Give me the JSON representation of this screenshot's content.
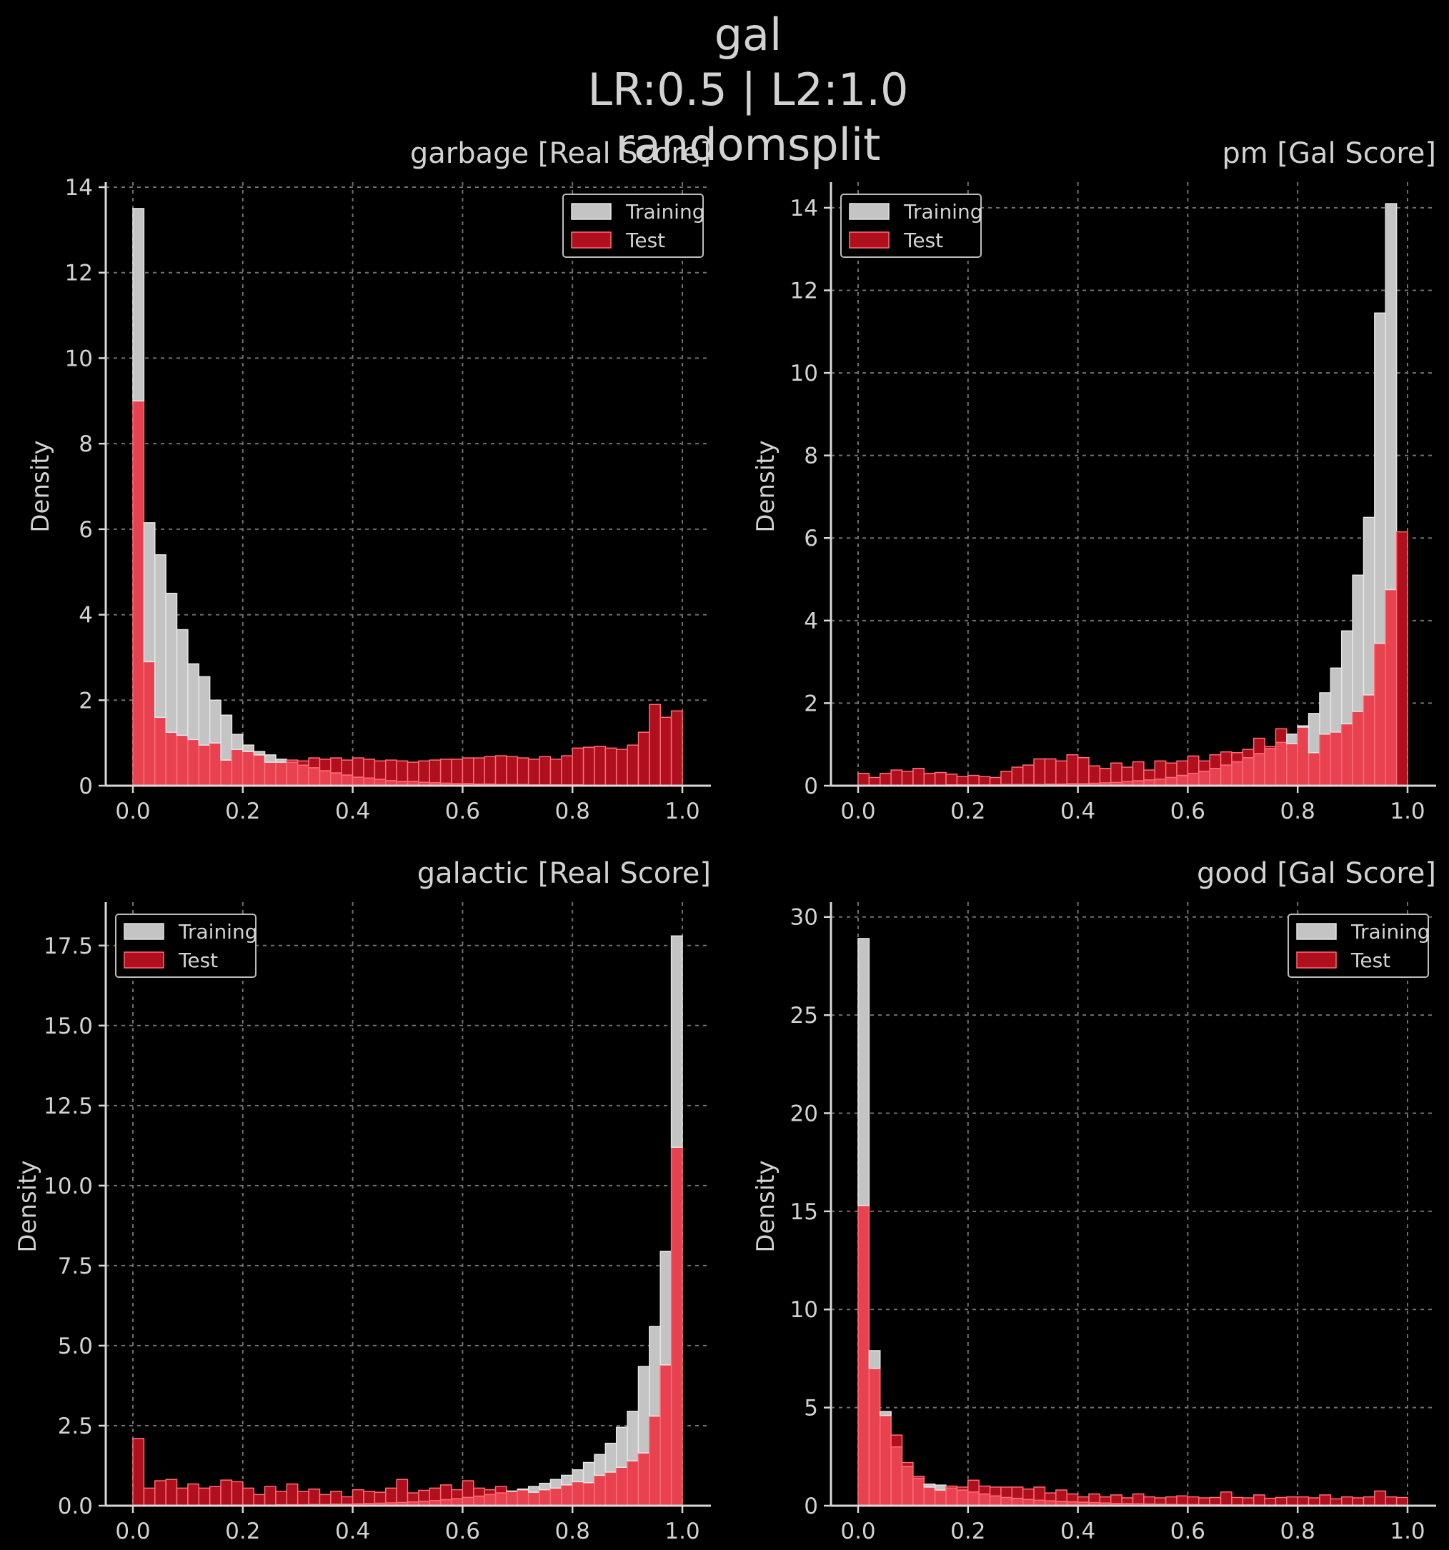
{
  "figure": {
    "title_lines": [
      "gal",
      "LR:0.5 | L2:1.0",
      "randomsplit"
    ],
    "background": "#000000",
    "colors": {
      "training_fill": "#c4c4c4",
      "training_edge": "#e6e6e6",
      "test_fill": "#b0101e",
      "test_edge": "#ff6b75",
      "overlap_fill": "#e8414f",
      "axis": "#d8d8d8",
      "grid": "#707070",
      "text": "#d2d2d2"
    }
  },
  "chart_data": [
    {
      "type": "bar",
      "title": "garbage [Real Score]",
      "xlabel": "",
      "ylabel": "Density",
      "xlim": [
        0.0,
        1.0
      ],
      "ylim": [
        0,
        14
      ],
      "xticks": [
        "0.0",
        "0.2",
        "0.4",
        "0.6",
        "0.8",
        "1.0"
      ],
      "yticks": [
        "0",
        "2",
        "4",
        "6",
        "8",
        "10",
        "12",
        "14"
      ],
      "grid": true,
      "legend_position": "top-right",
      "bins": 50,
      "series": [
        {
          "name": "Training",
          "values": [
            13.5,
            6.15,
            5.4,
            4.5,
            3.65,
            2.85,
            2.55,
            2.0,
            1.65,
            1.2,
            0.95,
            0.8,
            0.72,
            0.62,
            0.55,
            0.48,
            0.42,
            0.35,
            0.3,
            0.25,
            0.2,
            0.18,
            0.15,
            0.12,
            0.1,
            0.1,
            0.08,
            0.07,
            0.06,
            0.05,
            0.05,
            0.04,
            0.04,
            0.03,
            0.03,
            0.03,
            0.02,
            0.02,
            0.02,
            0.02,
            0.02,
            0.01,
            0.01,
            0.01,
            0.01,
            0.01,
            0.01,
            0.01,
            0.01,
            0.01
          ]
        },
        {
          "name": "Test",
          "values": [
            9.0,
            2.9,
            1.6,
            1.25,
            1.18,
            1.08,
            0.95,
            1.0,
            0.6,
            0.85,
            0.8,
            0.72,
            0.55,
            0.55,
            0.6,
            0.58,
            0.65,
            0.62,
            0.65,
            0.6,
            0.65,
            0.62,
            0.58,
            0.6,
            0.58,
            0.55,
            0.58,
            0.6,
            0.62,
            0.62,
            0.65,
            0.65,
            0.68,
            0.7,
            0.68,
            0.65,
            0.62,
            0.68,
            0.62,
            0.7,
            0.88,
            0.9,
            0.92,
            0.88,
            0.85,
            0.95,
            1.25,
            1.9,
            1.6,
            1.75
          ]
        }
      ]
    },
    {
      "type": "bar",
      "title": "pm [Gal Score]",
      "xlabel": "",
      "ylabel": "Density",
      "xlim": [
        0.0,
        1.0
      ],
      "ylim": [
        0,
        14.5
      ],
      "xticks": [
        "0.0",
        "0.2",
        "0.4",
        "0.6",
        "0.8",
        "1.0"
      ],
      "yticks": [
        "0",
        "2",
        "4",
        "6",
        "8",
        "10",
        "12",
        "14"
      ],
      "grid": true,
      "legend_position": "top-left",
      "bins": 50,
      "series": [
        {
          "name": "Training",
          "values": [
            0.01,
            0.01,
            0.01,
            0.01,
            0.01,
            0.01,
            0.01,
            0.01,
            0.02,
            0.02,
            0.02,
            0.02,
            0.02,
            0.03,
            0.03,
            0.03,
            0.03,
            0.04,
            0.04,
            0.05,
            0.05,
            0.06,
            0.07,
            0.08,
            0.1,
            0.12,
            0.14,
            0.16,
            0.2,
            0.25,
            0.3,
            0.35,
            0.42,
            0.5,
            0.58,
            0.68,
            0.78,
            0.9,
            1.05,
            1.25,
            1.45,
            1.75,
            2.25,
            2.85,
            3.75,
            5.1,
            6.5,
            11.45,
            14.1,
            0.0
          ]
        },
        {
          "name": "Test",
          "values": [
            0.3,
            0.2,
            0.3,
            0.38,
            0.35,
            0.42,
            0.3,
            0.32,
            0.28,
            0.22,
            0.25,
            0.22,
            0.2,
            0.35,
            0.45,
            0.5,
            0.65,
            0.65,
            0.6,
            0.75,
            0.68,
            0.48,
            0.42,
            0.55,
            0.45,
            0.58,
            0.38,
            0.6,
            0.55,
            0.6,
            0.72,
            0.6,
            0.75,
            0.82,
            0.8,
            0.88,
            1.15,
            0.95,
            1.38,
            1.02,
            1.42,
            0.8,
            1.25,
            1.3,
            1.5,
            1.8,
            2.2,
            3.45,
            4.75,
            6.15
          ]
        }
      ]
    },
    {
      "type": "bar",
      "title": "galactic [Real Score]",
      "xlabel": "",
      "ylabel": "Density",
      "xlim": [
        0.0,
        1.0
      ],
      "ylim": [
        0,
        18.7
      ],
      "xticks": [
        "0.0",
        "0.2",
        "0.4",
        "0.6",
        "0.8",
        "1.0"
      ],
      "yticks": [
        "0.0",
        "2.5",
        "5.0",
        "7.5",
        "10.0",
        "12.5",
        "15.0",
        "17.5"
      ],
      "grid": true,
      "legend_position": "top-left",
      "bins": 50,
      "series": [
        {
          "name": "Training",
          "values": [
            0.01,
            0.01,
            0.01,
            0.01,
            0.01,
            0.01,
            0.01,
            0.01,
            0.01,
            0.02,
            0.02,
            0.02,
            0.02,
            0.03,
            0.03,
            0.03,
            0.04,
            0.04,
            0.05,
            0.05,
            0.06,
            0.07,
            0.08,
            0.09,
            0.1,
            0.12,
            0.14,
            0.16,
            0.19,
            0.22,
            0.26,
            0.3,
            0.35,
            0.4,
            0.46,
            0.52,
            0.6,
            0.7,
            0.82,
            0.95,
            1.12,
            1.35,
            1.6,
            1.95,
            2.45,
            2.95,
            4.35,
            5.6,
            7.95,
            17.8
          ]
        },
        {
          "name": "Test",
          "values": [
            2.1,
            0.55,
            0.78,
            0.82,
            0.55,
            0.68,
            0.55,
            0.6,
            0.8,
            0.75,
            0.55,
            0.35,
            0.6,
            0.45,
            0.68,
            0.45,
            0.52,
            0.35,
            0.45,
            0.28,
            0.5,
            0.45,
            0.42,
            0.55,
            0.82,
            0.4,
            0.48,
            0.55,
            0.65,
            0.5,
            0.78,
            0.55,
            0.5,
            0.6,
            0.45,
            0.5,
            0.42,
            0.5,
            0.55,
            0.65,
            0.75,
            0.72,
            0.95,
            1.05,
            1.2,
            1.4,
            1.65,
            2.8,
            4.4,
            11.2
          ]
        }
      ]
    },
    {
      "type": "bar",
      "title": "good [Gal Score]",
      "xlabel": "",
      "ylabel": "Density",
      "xlim": [
        0.0,
        1.0
      ],
      "ylim": [
        0,
        30.5
      ],
      "xticks": [
        "0.0",
        "0.2",
        "0.4",
        "0.6",
        "0.8",
        "1.0"
      ],
      "yticks": [
        "0",
        "5",
        "10",
        "15",
        "20",
        "25",
        "30"
      ],
      "grid": true,
      "legend_position": "top-right",
      "bins": 50,
      "series": [
        {
          "name": "Training",
          "values": [
            28.9,
            7.9,
            4.8,
            3.0,
            2.0,
            1.4,
            1.1,
            1.05,
            0.9,
            0.8,
            0.7,
            0.6,
            0.5,
            0.42,
            0.38,
            0.32,
            0.28,
            0.25,
            0.22,
            0.2,
            0.18,
            0.16,
            0.14,
            0.12,
            0.11,
            0.1,
            0.09,
            0.08,
            0.07,
            0.06,
            0.06,
            0.05,
            0.05,
            0.04,
            0.04,
            0.04,
            0.03,
            0.03,
            0.03,
            0.03,
            0.02,
            0.02,
            0.02,
            0.02,
            0.02,
            0.02,
            0.02,
            0.02,
            0.02,
            0.02
          ]
        },
        {
          "name": "Test",
          "values": [
            15.3,
            7.0,
            4.6,
            3.6,
            2.2,
            1.5,
            0.95,
            0.8,
            1.0,
            0.95,
            1.3,
            1.0,
            0.95,
            0.95,
            0.95,
            0.85,
            0.95,
            0.65,
            0.8,
            0.6,
            0.45,
            0.6,
            0.45,
            0.55,
            0.4,
            0.6,
            0.45,
            0.4,
            0.45,
            0.5,
            0.45,
            0.4,
            0.42,
            0.7,
            0.42,
            0.4,
            0.55,
            0.38,
            0.42,
            0.45,
            0.45,
            0.4,
            0.55,
            0.35,
            0.45,
            0.4,
            0.45,
            0.75,
            0.45,
            0.42
          ]
        }
      ]
    }
  ]
}
